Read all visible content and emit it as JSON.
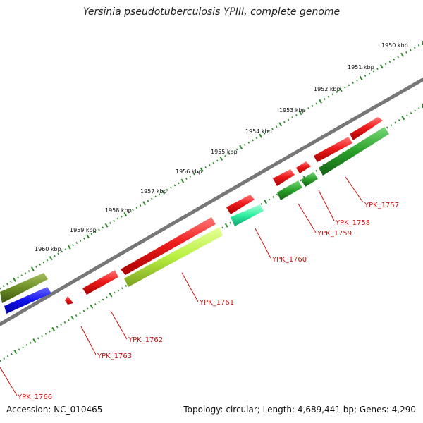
{
  "title": "Yersinia pseudotuberculosis YPIII, complete genome",
  "accession": "Accession: NC_010465",
  "summary": "Topology: circular; Length: 4,689,441 bp; Genes: 4,290",
  "ticks": [
    "1950 kbp",
    "1951 kbp",
    "1952 kbp",
    "1953 kbp",
    "1954 kbp",
    "1955 kbp",
    "1956 kbp",
    "1957 kbp",
    "1958 kbp",
    "1959 kbp",
    "1960 kbp"
  ],
  "genes": [
    {
      "id": "YPK_1757",
      "color": "#ee1c1c",
      "strand": "outer"
    },
    {
      "id": "YPK_1757",
      "color": "#2aa02a",
      "strand": "inner"
    },
    {
      "id": "YPK_1758",
      "color": "#ee1c1c",
      "strand": "outer"
    },
    {
      "id": "YPK_1758",
      "color": "#2aa02a",
      "strand": "inner"
    },
    {
      "id": "YPK_1759",
      "color": "#ee1c1c",
      "strand": "outer"
    },
    {
      "id": "YPK_1759",
      "color": "#2aa02a",
      "strand": "inner"
    },
    {
      "id": "YPK_1760",
      "color": "#ee1c1c",
      "strand": "outer"
    },
    {
      "id": "YPK_1760",
      "color": "#2ef0a0",
      "strand": "inner"
    },
    {
      "id": "YPK_1761",
      "color": "#ee1c1c",
      "strand": "outer"
    },
    {
      "id": "YPK_1761",
      "color": "#b8f040",
      "strand": "inner"
    },
    {
      "id": "YPK_1762",
      "color": "#ee1c1c",
      "strand": "outer"
    },
    {
      "id": "YPK_1763",
      "color": "#ee1c1c",
      "strand": "outer"
    },
    {
      "id": "YPK_1766",
      "color": "#6b8e23",
      "strand": "outer"
    },
    {
      "id": "YPK_1766",
      "color": "#1111ee",
      "strand": "inner"
    }
  ],
  "gene_labels": [
    "YPK_1757",
    "YPK_1758",
    "YPK_1759",
    "YPK_1760",
    "YPK_1761",
    "YPK_1762",
    "YPK_1763",
    "YPK_1766"
  ],
  "colors": {
    "backbone": "#777777",
    "ticks": "#2a8a2a",
    "label": "#cc1111"
  }
}
